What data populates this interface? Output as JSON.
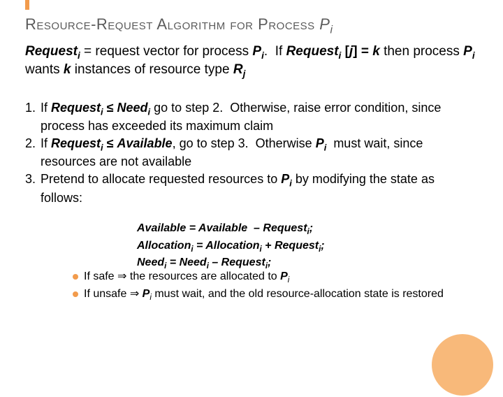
{
  "colors": {
    "accent": "#f29b4c",
    "accent_light": "#f8b97a",
    "title": "#5b5b5b",
    "text": "#000000",
    "bg": "#ffffff"
  },
  "title_html": "R<span class='smallcaps'>esource</span>-R<span class='smallcaps'>equest</span> A<span class='smallcaps'>lgorithm for</span> P<span class='smallcaps'>rocess</span> <i>P<span class='sub'>i</span></i>",
  "intro_html": "<b><i>Request<span class='sub'>i</span></i></b> = request vector for process <b><i>P<span class='sub'>i</span></i></b>.&nbsp; If <b><i>Request<span class='sub'>i</span></i> [<i>j</i>] = <i>k</i></b> then process <b><i>P<span class='sub'>i</span></i></b> wants <b><i>k</i></b> instances of resource type <b><i>R<span class='sub'>j</span></i></b>",
  "steps": [
    "If <b><i>Request<span class='sub'>i</span></i> ≤ <i>Need<span class='sub'>i</span></i></b> go to step 2.&nbsp; Otherwise, raise error condition, since process has exceeded its maximum claim",
    "If <b><i>Request<span class='sub'>i</span></i> ≤ <i>Available</i></b>, go to step 3.&nbsp; Otherwise <b><i>P<span class='sub'>i</span></i></b>&nbsp; must wait, since resources are not available",
    "Pretend to allocate requested resources to <b><i>P<span class='sub'>i</span></i></b> by modifying the state as follows:"
  ],
  "equations": [
    "Available = Available&nbsp; – Request<span class='sub'>i</span>;",
    "Allocation<span class='sub'>i</span> = Allocation<span class='sub'>i</span> + Request<span class='sub'>i</span>;",
    "Need<span class='sub'>i</span> = Need<span class='sub'>i</span> – Request<span class='sub'>i</span>;"
  ],
  "bullets": [
    "If safe ⇒ the resources are allocated to <b><i>P</i></b><i><span class='sub'>i</span></i>",
    "If unsafe ⇒ <b><i>P</i></b><i><span class='sub'>i</span></i> must wait, and the old resource-allocation state is restored"
  ]
}
